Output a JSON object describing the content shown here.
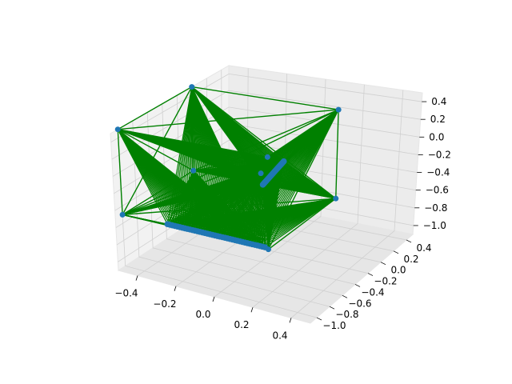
{
  "chart_data": {
    "type": "scatter3d",
    "title": "",
    "x_ticks": [
      "−0.4",
      "−0.2",
      "0.0",
      "0.2",
      "0.4"
    ],
    "y_ticks": [
      "−1.0",
      "−0.8",
      "−0.6",
      "−0.4",
      "−0.2",
      "0.0",
      "0.2",
      "0.4"
    ],
    "z_ticks": [
      "0.4",
      "0.2",
      "0.0",
      "−0.2",
      "−0.4",
      "−0.6",
      "−0.8",
      "−1.0"
    ],
    "xlim": [
      -0.5,
      0.5
    ],
    "ylim": [
      -1.1,
      0.5
    ],
    "zlim": [
      -1.1,
      0.5
    ],
    "grid": true,
    "colors": {
      "points": "#1f77b4",
      "edges": "#008000",
      "pane": "#f2f2f2",
      "grid": "#d0d0d0"
    },
    "nodes": [
      {
        "x": -0.5,
        "y": 0.0,
        "z": 0.5
      },
      {
        "x": 0.25,
        "y": 0.0,
        "z": 0.5
      },
      {
        "x": 0.25,
        "y": -1.0,
        "z": 0.5
      },
      {
        "x": -0.5,
        "y": -1.0,
        "z": 0.5
      },
      {
        "x": -0.5,
        "y": 0.0,
        "z": -0.5
      },
      {
        "x": 0.25,
        "y": 0.0,
        "z": -0.5
      },
      {
        "x": 0.25,
        "y": -1.0,
        "z": -0.5
      },
      {
        "x": -0.5,
        "y": -1.0,
        "z": -0.5
      },
      {
        "x": 0.0,
        "y": -0.4,
        "z": -0.1
      }
    ],
    "dense_lines": [
      {
        "from": [
          -0.25,
          -1.05,
          -0.45
        ],
        "to": [
          0.25,
          -1.05,
          -0.45
        ],
        "count": 40
      }
    ],
    "dense_mid": [
      {
        "from": [
          0.1,
          -0.35,
          0.05
        ],
        "to": [
          0.1,
          -0.65,
          -0.05
        ],
        "count": 30
      }
    ]
  }
}
